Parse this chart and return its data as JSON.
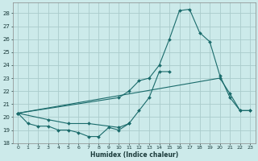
{
  "xlabel": "Humidex (Indice chaleur)",
  "bg_color": "#cceaea",
  "grid_color": "#aacccc",
  "line_color": "#1a6b6b",
  "xlim": [
    -0.5,
    23.5
  ],
  "ylim": [
    18,
    28.8
  ],
  "yticks": [
    18,
    19,
    20,
    21,
    22,
    23,
    24,
    25,
    26,
    27,
    28
  ],
  "xticks": [
    0,
    1,
    2,
    3,
    4,
    5,
    6,
    7,
    8,
    9,
    10,
    11,
    12,
    13,
    14,
    15,
    16,
    17,
    18,
    19,
    20,
    21,
    22,
    23
  ],
  "series": [
    {
      "x": [
        0,
        1,
        2,
        3,
        4,
        5,
        6,
        7,
        8,
        9,
        10,
        11
      ],
      "y": [
        20.3,
        19.5,
        19.3,
        19.3,
        19.0,
        19.0,
        18.8,
        18.5,
        18.5,
        19.2,
        19.0,
        19.5
      ]
    },
    {
      "x": [
        0,
        3,
        5,
        7,
        10,
        11,
        12,
        13,
        14,
        15
      ],
      "y": [
        20.3,
        19.8,
        19.5,
        19.5,
        19.2,
        19.5,
        20.5,
        21.5,
        23.5,
        23.5
      ]
    },
    {
      "x": [
        0,
        10,
        11,
        12,
        13,
        14,
        15,
        16,
        17,
        18,
        19,
        20,
        21,
        22,
        23
      ],
      "y": [
        20.3,
        21.5,
        22.0,
        22.8,
        23.0,
        24.0,
        26.0,
        28.2,
        28.3,
        26.5,
        25.8,
        23.2,
        21.5,
        20.5,
        20.5
      ]
    },
    {
      "x": [
        0,
        20,
        21,
        22,
        23
      ],
      "y": [
        20.3,
        23.0,
        21.8,
        20.5,
        20.5
      ]
    }
  ]
}
